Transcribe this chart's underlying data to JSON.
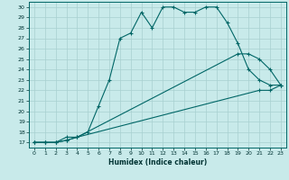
{
  "xlabel": "Humidex (Indice chaleur)",
  "bg_color": "#c8eaea",
  "grid_color": "#a8d0d0",
  "line_color": "#006666",
  "xlim": [
    -0.5,
    23.5
  ],
  "ylim": [
    16.5,
    30.5
  ],
  "xticks": [
    0,
    1,
    2,
    3,
    4,
    5,
    6,
    7,
    8,
    9,
    10,
    11,
    12,
    13,
    14,
    15,
    16,
    17,
    18,
    19,
    20,
    21,
    22,
    23
  ],
  "yticks": [
    17,
    18,
    19,
    20,
    21,
    22,
    23,
    24,
    25,
    26,
    27,
    28,
    29,
    30
  ],
  "curve1_x": [
    0,
    1,
    2,
    3,
    4,
    5,
    6,
    7,
    8,
    9,
    10,
    11,
    12,
    13,
    14,
    15,
    16,
    17,
    18,
    19,
    20,
    21,
    22,
    23
  ],
  "curve1_y": [
    17,
    17,
    17,
    17.5,
    17.5,
    18,
    20.5,
    23,
    27,
    27.5,
    29.5,
    28,
    30,
    30,
    29.5,
    29.5,
    30,
    30,
    28.5,
    26.5,
    24,
    23,
    22.5,
    22.5
  ],
  "curve2_x": [
    0,
    1,
    2,
    3,
    4,
    19,
    20,
    21,
    22,
    23
  ],
  "curve2_y": [
    17,
    17,
    17,
    17.2,
    17.5,
    25.5,
    25.5,
    25,
    24,
    22.5
  ],
  "curve3_x": [
    0,
    1,
    2,
    3,
    4,
    21,
    22,
    23
  ],
  "curve3_y": [
    17,
    17,
    17,
    17.2,
    17.5,
    22,
    22,
    22.5
  ]
}
